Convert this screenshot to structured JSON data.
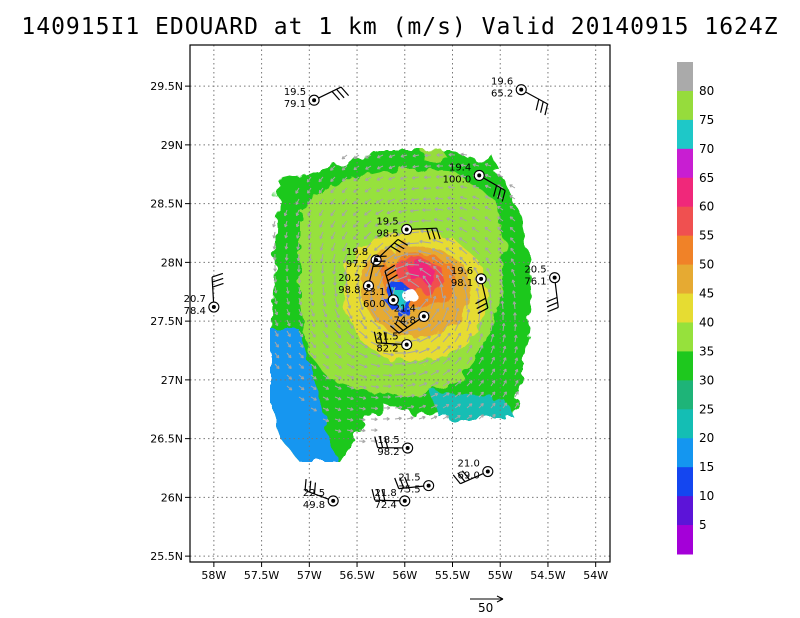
{
  "title": "140915I1 EDOUARD at 1 km (m/s) Valid 20140915 1624Z",
  "map": {
    "lon_ticks": [
      "58W",
      "57.5W",
      "57W",
      "56.5W",
      "56W",
      "55.5W",
      "55W",
      "54.5W",
      "54W"
    ],
    "lat_ticks": [
      "29.5N",
      "29N",
      "28.5N",
      "28N",
      "27.5N",
      "27N",
      "26.5N",
      "26N",
      "25.5N"
    ],
    "lon_range": [
      -58.25,
      -53.85
    ],
    "lat_range": [
      25.45,
      29.85
    ],
    "grid": "dotted",
    "center": {
      "lon": -55.95,
      "lat": 27.72
    }
  },
  "colorbar": {
    "labels": [
      "5",
      "10",
      "15",
      "20",
      "25",
      "30",
      "35",
      "40",
      "45",
      "50",
      "55",
      "60",
      "65",
      "70",
      "75",
      "80"
    ],
    "colors": [
      "#a400d8",
      "#5c14d8",
      "#1446f0",
      "#1496f0",
      "#14beb4",
      "#1eb478",
      "#1ec81e",
      "#96e13c",
      "#e6dc32",
      "#e6aa32",
      "#f08228",
      "#f05050",
      "#f0287a",
      "#c81ed2",
      "#1ec8c8",
      "#96dc3c",
      "#aaaaaa"
    ]
  },
  "wind_reference": {
    "label": "50"
  },
  "dropsondes": [
    {
      "lon": -56.95,
      "lat": 29.38,
      "wind": "19.5",
      "pressure": "79.1"
    },
    {
      "lon": -54.78,
      "lat": 29.47,
      "wind": "19.6",
      "pressure": "65.2"
    },
    {
      "lon": -55.22,
      "lat": 28.74,
      "wind": "19.4",
      "pressure": "100.0"
    },
    {
      "lon": -55.98,
      "lat": 28.28,
      "wind": "19.5",
      "pressure": "98.5"
    },
    {
      "lon": -56.3,
      "lat": 28.02,
      "wind": "19.8",
      "pressure": "97.5"
    },
    {
      "lon": -56.38,
      "lat": 27.8,
      "wind": "20.2",
      "pressure": "98.8"
    },
    {
      "lon": -55.2,
      "lat": 27.86,
      "wind": "19.6",
      "pressure": "98.1"
    },
    {
      "lon": -54.43,
      "lat": 27.87,
      "wind": "20.5",
      "pressure": "76.1"
    },
    {
      "lon": -58.0,
      "lat": 27.62,
      "wind": "20.7",
      "pressure": "78.4"
    },
    {
      "lon": -56.12,
      "lat": 27.68,
      "wind": "23.1",
      "pressure": "60.0"
    },
    {
      "lon": -55.8,
      "lat": 27.54,
      "wind": "21.4",
      "pressure": "74.8"
    },
    {
      "lon": -55.98,
      "lat": 27.3,
      "wind": "21.5",
      "pressure": "82.2"
    },
    {
      "lon": -55.97,
      "lat": 26.42,
      "wind": "18.5",
      "pressure": "98.2"
    },
    {
      "lon": -55.13,
      "lat": 26.22,
      "wind": "21.0",
      "pressure": "69.0"
    },
    {
      "lon": -55.75,
      "lat": 26.1,
      "wind": "21.5",
      "pressure": "75.5"
    },
    {
      "lon": -56.0,
      "lat": 25.97,
      "wind": "21.8",
      "pressure": "72.4"
    },
    {
      "lon": -56.75,
      "lat": 25.97,
      "wind": "22.5",
      "pressure": "49.8"
    }
  ]
}
